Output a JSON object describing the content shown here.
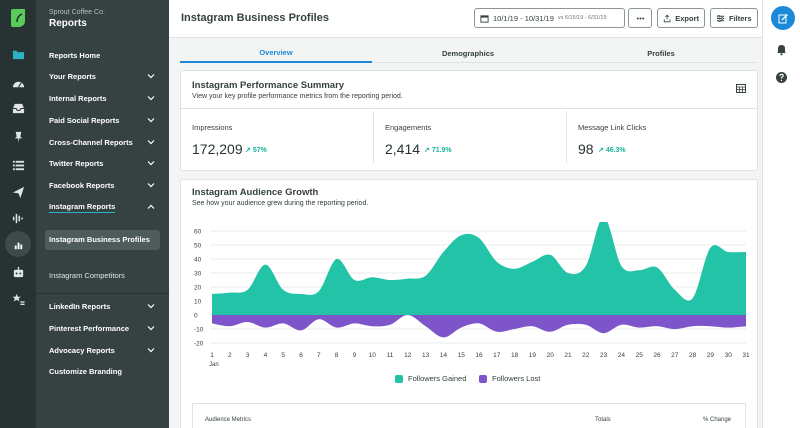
{
  "sidebar": {
    "org": "Sprout Coffee Co.",
    "title": "Reports",
    "items": [
      {
        "label": "Reports Home"
      },
      {
        "label": "Your Reports"
      },
      {
        "label": "Internal Reports"
      },
      {
        "label": "Paid Social Reports"
      },
      {
        "label": "Cross-Channel Reports"
      },
      {
        "label": "Twitter Reports"
      },
      {
        "label": "Facebook Reports"
      },
      {
        "label": "Instagram Reports"
      },
      {
        "label": "Instagram Business Profiles"
      },
      {
        "label": "Instagram Competitors"
      },
      {
        "label": "LinkedIn Reports"
      },
      {
        "label": "Pinterest Performance"
      },
      {
        "label": "Advocacy Reports"
      },
      {
        "label": "Customize Branding"
      }
    ]
  },
  "header": {
    "title": "Instagram Business Profiles",
    "date_range": "10/1/19 - 10/31/19",
    "compare_range": "vs 6/15/19 - 6/31/19",
    "export_label": "Export",
    "filters_label": "Filters"
  },
  "tabs": [
    {
      "label": "Overview"
    },
    {
      "label": "Demographics"
    },
    {
      "label": "Profiles"
    }
  ],
  "summary": {
    "title": "Instagram Performance Summary",
    "description": "View your key profile performance metrics from the reporting period.",
    "metrics": [
      {
        "label": "Impressions",
        "value": "172,209",
        "change": "57%"
      },
      {
        "label": "Engagements",
        "value": "2,414",
        "change": "71.9%"
      },
      {
        "label": "Message Link Clicks",
        "value": "98",
        "change": "46.3%"
      }
    ]
  },
  "growth": {
    "title": "Instagram Audience Growth",
    "description": "See how your audience grew during the reporting period."
  },
  "chart_data": {
    "type": "area",
    "x": [
      1,
      2,
      3,
      4,
      5,
      6,
      7,
      8,
      9,
      10,
      11,
      12,
      13,
      14,
      15,
      16,
      17,
      18,
      19,
      20,
      21,
      22,
      23,
      24,
      25,
      26,
      27,
      28,
      29,
      30,
      31
    ],
    "x_month_label": "Jan",
    "ylim": [
      -20,
      60
    ],
    "yticks": [
      60,
      50,
      40,
      30,
      20,
      10,
      0,
      -10,
      -20
    ],
    "grid": true,
    "legend_position": "bottom",
    "series": [
      {
        "name": "Followers Gained",
        "color": "#22c3a6",
        "values": [
          15,
          16,
          18,
          36,
          18,
          15,
          17,
          40,
          25,
          27,
          25,
          26,
          28,
          45,
          57,
          55,
          38,
          33,
          38,
          43,
          30,
          35,
          70,
          35,
          32,
          34,
          18,
          12,
          48,
          45,
          45
        ]
      },
      {
        "name": "Followers Lost",
        "color": "#7e54cb",
        "values": [
          -6,
          -8,
          -5,
          -9,
          -6,
          -11,
          -3,
          -9,
          -6,
          -8,
          -7,
          0,
          -8,
          -16,
          -9,
          -6,
          -12,
          -10,
          -8,
          -12,
          -7,
          -7,
          -13,
          -7,
          -9,
          -8,
          -10,
          -8,
          -8,
          -9,
          -8
        ]
      }
    ]
  },
  "table": {
    "col1": "Audience Metrics",
    "col2": "Totals",
    "col3": "% Change"
  },
  "colors": {
    "accent": "#1a8ad8",
    "positive": "#17b39d",
    "sidebar": "#364141",
    "rail": "#273333"
  }
}
